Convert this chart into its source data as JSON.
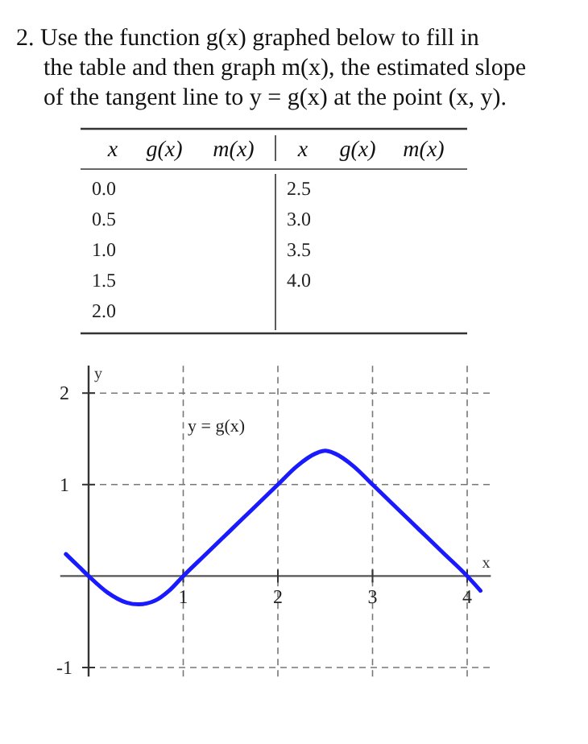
{
  "chart_data": {
    "type": "line",
    "title": "2. Use the function g(x) graphed below to fill in the table and then graph m(x), the estimated slope of the tangent line to y = g(x) at the point (x, y).",
    "annotations": [
      "x",
      "g(x)",
      "m(x)",
      "x",
      "g(x)",
      "m(x)",
      "0.0",
      "2.5",
      "0.5",
      "3.0",
      "1.0",
      "3.5",
      "1.5",
      "4.0",
      "2.0",
      "y = g(x)"
    ],
    "xlabel": "x",
    "ylabel": "y",
    "xlim": [
      -0.3,
      4.25
    ],
    "ylim": [
      -1.1,
      2.3
    ],
    "xticks": [
      1,
      2,
      3,
      4
    ],
    "yticks": [
      -1,
      1,
      2
    ],
    "grid": true,
    "line_style": "solid",
    "marker": "none",
    "x": [
      -0.24,
      -0.1,
      0,
      0.2,
      0.4,
      0.53,
      0.7,
      0.85,
      1,
      1.25,
      1.5,
      1.75,
      2,
      2.2,
      2.4,
      2.5,
      2.6,
      2.8,
      3,
      3.25,
      3.5,
      3.75,
      4,
      4.14
    ],
    "series": [
      {
        "color": "#1a1aff",
        "values": [
          0.24,
          0.1,
          0,
          -0.18,
          -0.29,
          -0.31,
          -0.27,
          -0.16,
          0,
          0.25,
          0.5,
          0.75,
          1,
          1.2,
          1.34,
          1.37,
          1.34,
          1.2,
          1,
          0.75,
          0.5,
          0.25,
          0,
          -0.16
        ]
      }
    ]
  }
}
